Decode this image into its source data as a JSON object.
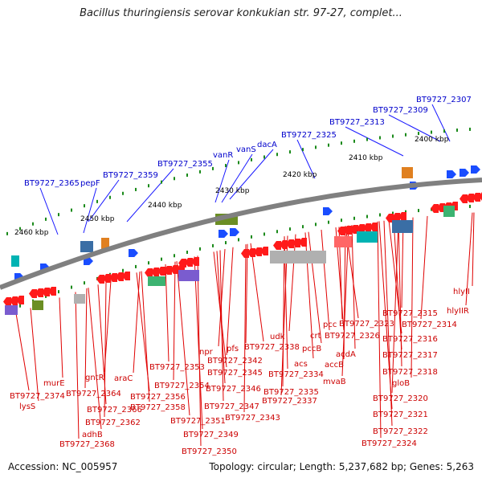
{
  "title": "Bacillus thuringiensis serovar konkukian str. 97-27, complet...",
  "footer": {
    "accession": "Accession: NC_005957",
    "summary": "Topology: circular; Length: 5,237,682 bp; Genes: 5,263"
  },
  "colors": {
    "backbone": "#808080",
    "label_top": "#0000cc",
    "label_bottom": "#cc0000",
    "leader_top": "#1a1aff",
    "leader_bottom": "#e00000",
    "tick": "#1a8a1a",
    "gene_forward": "#1a4dff",
    "gene_reverse": "#ff1a1a"
  },
  "scale_labels": [
    "2460 kbp",
    "2450 kbp",
    "2440 kbp",
    "2430 kbp",
    "2420 kbp",
    "2410 kbp",
    "2400 kbp"
  ],
  "labels_top": [
    "BT9727_2365",
    "pepF",
    "BT9727_2359",
    "BT9727_2355",
    "vanR",
    "vanS",
    "dacA",
    "BT9727_2325",
    "BT9727_2313",
    "BT9727_2309",
    "BT9727_2307"
  ],
  "labels_bottom": [
    "BT9727_2374",
    "lysS",
    "murE",
    "BT9727_2364",
    "gntR",
    "adhB",
    "BT9727_2366",
    "BT9727_2368",
    "BT9727_2362",
    "araC",
    "BT9727_2356",
    "BT9727_2358",
    "BT9727_2353",
    "BT9727_2354",
    "npr",
    "BT9727_2351",
    "BT9727_2349",
    "BT9727_2350",
    "pfs",
    "BT9727_2342",
    "BT9727_2345",
    "BT9727_2346",
    "BT9727_2347",
    "BT9727_2343",
    "udk",
    "BT9727_2338",
    "acs",
    "BT9727_2334",
    "BT9727_2335",
    "BT9727_2337",
    "pccB",
    "crt",
    "pcc",
    "accB",
    "mvaB",
    "BT9727_2323",
    "BT9727_2326",
    "acdA",
    "BT9727_2315",
    "BT9727_2314",
    "BT9727_2316",
    "BT9727_2317",
    "BT9727_2318",
    "gloB",
    "BT9727_2320",
    "BT9727_2321",
    "BT9727_2322",
    "BT9727_2324",
    "hlyII",
    "hlyIIR"
  ]
}
